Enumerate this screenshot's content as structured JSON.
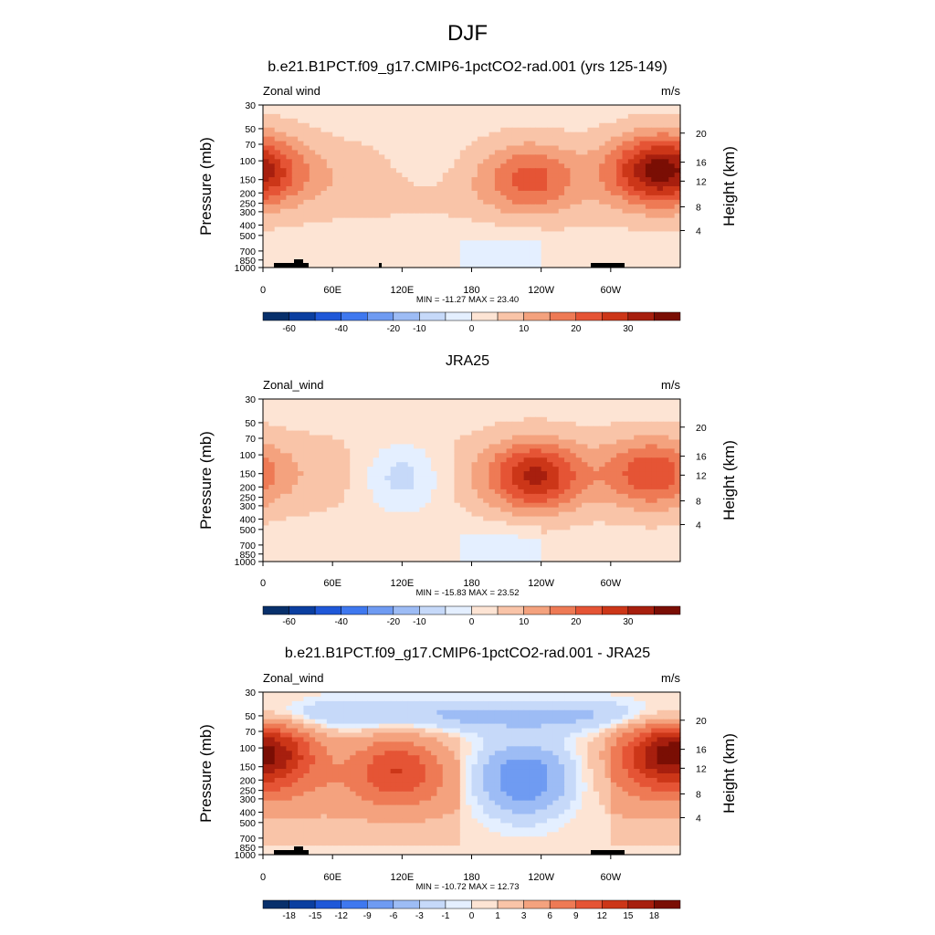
{
  "figure_title": "DJF",
  "colors": {
    "label_palette_main": [
      "#08306b",
      "#0b3fa0",
      "#1f58d8",
      "#3f78ef",
      "#6f9bf2",
      "#9dbcf5",
      "#c6d9f9",
      "#e4efff",
      "#fde4d4",
      "#f9c4a8",
      "#f4a27e",
      "#ee7a55",
      "#e55435",
      "#cc3618",
      "#a71f0e",
      "#7a0e04"
    ],
    "label_palette_diff": [
      "#08306b",
      "#0b3fa0",
      "#1f58d8",
      "#3f78ef",
      "#6f9bf2",
      "#9dbcf5",
      "#c6d9f9",
      "#e4efff",
      "#fde4d4",
      "#f9c4a8",
      "#f4a27e",
      "#ee7a55",
      "#e55435",
      "#cc3618",
      "#a71f0e",
      "#7a0e04"
    ],
    "topography": "#000000"
  },
  "chart_data": [
    {
      "type": "heatmap",
      "title": "b.e21.B1PCT.f09_g17.CMIP6-1pctCO2-rad.001 (yrs 125-149)",
      "left_label": "Zonal wind",
      "units": "m/s",
      "ylabel": "Pressure (mb)",
      "ylabel_right": "Height (km)",
      "x_ticks": [
        "0",
        "60E",
        "120E",
        "180",
        "120W",
        "60W"
      ],
      "y_ticks": [
        "30",
        "50",
        "70",
        "100",
        "150",
        "200",
        "250",
        "300",
        "400",
        "500",
        "700",
        "850",
        "1000"
      ],
      "y_right_ticks": [
        "20",
        "16",
        "12",
        "8",
        "4"
      ],
      "stats": "MIN = -11.27  MAX =  23.40",
      "colorbar_labels": [
        "-60",
        "-40",
        "-20",
        "-10",
        "0",
        "10",
        "20",
        "30"
      ],
      "features": [
        {
          "lon": 230,
          "p": 150,
          "v": 14
        },
        {
          "lon": 335,
          "p": 120,
          "v": 22
        },
        {
          "lon": 5,
          "p": 120,
          "v": 12
        },
        {
          "lon": 140,
          "p": 110,
          "v": -5
        }
      ]
    },
    {
      "type": "heatmap",
      "title": "JRA25",
      "left_label": "Zonal_wind",
      "units": "m/s",
      "ylabel": "Pressure (mb)",
      "ylabel_right": "Height (km)",
      "x_ticks": [
        "0",
        "60E",
        "120E",
        "180",
        "120W",
        "60W"
      ],
      "y_ticks": [
        "30",
        "50",
        "70",
        "100",
        "150",
        "200",
        "250",
        "300",
        "400",
        "500",
        "700",
        "850",
        "1000"
      ],
      "y_right_ticks": [
        "20",
        "16",
        "12",
        "8",
        "4"
      ],
      "stats": "MIN = -15.83  MAX =  23.52",
      "colorbar_labels": [
        "-60",
        "-40",
        "-20",
        "-10",
        "0",
        "10",
        "20",
        "30"
      ],
      "features": [
        {
          "lon": 235,
          "p": 160,
          "v": 23
        },
        {
          "lon": 335,
          "p": 150,
          "v": 16
        },
        {
          "lon": 120,
          "p": 160,
          "v": -15
        }
      ]
    },
    {
      "type": "heatmap",
      "title": "b.e21.B1PCT.f09_g17.CMIP6-1pctCO2-rad.001 - JRA25",
      "left_label": "Zonal_wind",
      "units": "m/s",
      "ylabel": "Pressure (mb)",
      "ylabel_right": "Height (km)",
      "x_ticks": [
        "0",
        "60E",
        "120E",
        "180",
        "120W",
        "60W"
      ],
      "y_ticks": [
        "30",
        "50",
        "70",
        "100",
        "150",
        "200",
        "250",
        "300",
        "400",
        "500",
        "700",
        "850",
        "1000"
      ],
      "y_right_ticks": [
        "20",
        "16",
        "12",
        "8",
        "4"
      ],
      "stats": "MIN = -10.72  MAX =  12.73",
      "colorbar_labels": [
        "-18",
        "-15",
        "-12",
        "-9",
        "-6",
        "-3",
        "-1",
        "0",
        "1",
        "3",
        "6",
        "9",
        "12",
        "15",
        "18"
      ],
      "features": [
        {
          "lon": 225,
          "p": 200,
          "v": -10
        },
        {
          "lon": 340,
          "p": 110,
          "v": 12
        },
        {
          "lon": 115,
          "p": 150,
          "v": 9
        },
        {
          "lon": 15,
          "p": 110,
          "v": 10
        }
      ]
    }
  ]
}
